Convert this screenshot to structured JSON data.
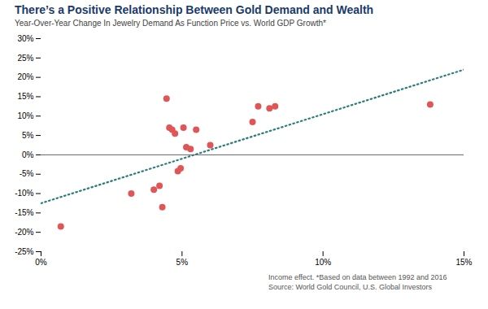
{
  "chart_data": {
    "type": "scatter",
    "title": "There’s a Positive Relationship Between Gold Demand and Wealth",
    "subtitle": "Year-Over-Year Change In Jewelry Demand As Function Price vs. World GDP Growth*",
    "footnote": "Income effect. *Based on data between 1992 and 2016",
    "source": "Source: World Gold Council, U.S. Global Investors",
    "x": [
      0.7,
      3.2,
      4.0,
      4.2,
      4.3,
      4.45,
      4.55,
      4.65,
      4.75,
      4.85,
      4.95,
      5.05,
      5.15,
      5.3,
      5.5,
      6.0,
      7.5,
      7.7,
      8.1,
      8.3,
      13.8
    ],
    "values": [
      -18.5,
      -10.0,
      -9.0,
      -8.0,
      -13.5,
      14.5,
      7.0,
      6.5,
      5.5,
      -4.2,
      -3.5,
      7.0,
      2.0,
      1.5,
      6.5,
      2.5,
      8.5,
      12.5,
      12.0,
      12.5,
      13.0
    ],
    "color": "#e05555",
    "trend_line": {
      "type": "line",
      "x": [
        0.0,
        15.0
      ],
      "values": [
        -12.5,
        22.0
      ],
      "color": "#2a7d7b",
      "line_style": "dotted"
    },
    "xlim": [
      0,
      15
    ],
    "ylim": [
      -25,
      30
    ],
    "xticks": [
      {
        "value": 0,
        "label": "0%"
      },
      {
        "value": 5,
        "label": "5%"
      },
      {
        "value": 10,
        "label": "10%"
      },
      {
        "value": 15,
        "label": "15%"
      }
    ],
    "yticks": [
      {
        "value": -25,
        "label": "-25%"
      },
      {
        "value": -20,
        "label": "-20%"
      },
      {
        "value": -15,
        "label": "-15%"
      },
      {
        "value": -10,
        "label": "-10%"
      },
      {
        "value": -5,
        "label": "-5%"
      },
      {
        "value": 0,
        "label": "0%"
      },
      {
        "value": 5,
        "label": "5%"
      },
      {
        "value": 10,
        "label": "10%"
      },
      {
        "value": 15,
        "label": "15%"
      },
      {
        "value": 20,
        "label": "20%"
      },
      {
        "value": 25,
        "label": "25%"
      },
      {
        "value": 30,
        "label": "30%"
      }
    ],
    "grid": false
  }
}
